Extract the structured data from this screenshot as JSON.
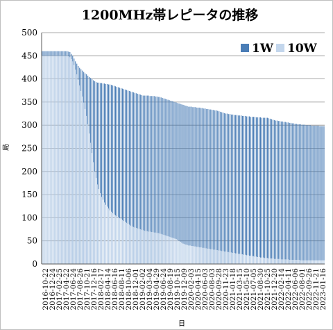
{
  "chart_data": {
    "type": "bar",
    "title": "1200MHz帯レピータの推移",
    "xlabel": "日",
    "ylabel": "局",
    "ylim": [
      0,
      500
    ],
    "yticks": [
      0,
      50,
      100,
      150,
      200,
      250,
      300,
      350,
      400,
      450,
      500
    ],
    "grid": true,
    "legend_position": "top-right",
    "stacked": false,
    "overlap": true,
    "colors": {
      "1W": "#4a7db6",
      "10W": "#c3d6ec"
    },
    "x_tick_labels": [
      "2016-10-22",
      "2016-12-24",
      "2017-02-25",
      "2017-04-22",
      "2017-06-24",
      "2017-08-26",
      "2017-10-21",
      "2017-12-16",
      "2018-02-17",
      "2018-04-14",
      "2018-06-16",
      "2018-08-11",
      "2018-10-06",
      "2018-12-01",
      "2019-02-02",
      "2019-03-04",
      "2019-04-29",
      "2019-06-24",
      "2019-08-19",
      "2019-10-15",
      "2019-12-09",
      "2020-02-03",
      "2020-04-15",
      "2020-06-03",
      "2020-08-03",
      "2020-09-28",
      "2020-11-23",
      "2021-01-18",
      "2021-03-15",
      "2021-05-10",
      "2021-07-05",
      "2021-08-30",
      "2021-10-25",
      "2021-12-20",
      "2022-02-14",
      "2022-04-11",
      "2022-06-06",
      "2022-08-01",
      "2022-09-26",
      "2022-11-21",
      "2023-01-16"
    ],
    "series": [
      {
        "name": "1W",
        "values": [
          460,
          460,
          460,
          460,
          460,
          460,
          460,
          460,
          460,
          460,
          460,
          460,
          460,
          460,
          460,
          460,
          460,
          460,
          460,
          459,
          458,
          454,
          450,
          444,
          438,
          433,
          428,
          424,
          421,
          418,
          415,
          412,
          410,
          407,
          404,
          402,
          400,
          397,
          395,
          393,
          392,
          392,
          391,
          391,
          390,
          390,
          389,
          389,
          388,
          388,
          387,
          386,
          385,
          384,
          383,
          382,
          381,
          380,
          379,
          378,
          377,
          376,
          375,
          374,
          373,
          372,
          371,
          370,
          369,
          368,
          367,
          366,
          365,
          364,
          364,
          364,
          364,
          364,
          363,
          363,
          363,
          363,
          362,
          362,
          361,
          361,
          360,
          359,
          358,
          357,
          356,
          355,
          354,
          353,
          352,
          351,
          350,
          349,
          348,
          347,
          346,
          345,
          344,
          343,
          342,
          341,
          340,
          340,
          340,
          339,
          339,
          339,
          338,
          338,
          338,
          337,
          337,
          336,
          336,
          335,
          335,
          334,
          334,
          333,
          333,
          332,
          332,
          331,
          330,
          329,
          328,
          327,
          326,
          325,
          325,
          324,
          324,
          323,
          323,
          322,
          322,
          322,
          321,
          321,
          321,
          320,
          320,
          320,
          319,
          319,
          319,
          318,
          318,
          318,
          318,
          317,
          317,
          317,
          317,
          316,
          316,
          316,
          316,
          316,
          315,
          314,
          313,
          312,
          311,
          310,
          310,
          309,
          309,
          308,
          308,
          307,
          307,
          306,
          306,
          305,
          305,
          304,
          304,
          303,
          303,
          302,
          302,
          302,
          301,
          301,
          301,
          300,
          300,
          300,
          300,
          299,
          299,
          299,
          299,
          299,
          299,
          298,
          298,
          298,
          298
        ]
      },
      {
        "name": "10W",
        "values": [
          450,
          450,
          450,
          450,
          450,
          450,
          450,
          450,
          450,
          450,
          450,
          450,
          450,
          450,
          450,
          450,
          450,
          450,
          450,
          449,
          447,
          443,
          438,
          430,
          420,
          410,
          398,
          386,
          374,
          362,
          349,
          335,
          320,
          302,
          282,
          262,
          240,
          220,
          200,
          186,
          172,
          162,
          153,
          145,
          139,
          133,
          128,
          124,
          120,
          116,
          113,
          110,
          107,
          105,
          103,
          101,
          99,
          97,
          95,
          93,
          91,
          89,
          87,
          85,
          83,
          81,
          80,
          79,
          78,
          77,
          76,
          75,
          74,
          73,
          72,
          71,
          71,
          70,
          70,
          69,
          69,
          68,
          68,
          67,
          67,
          66,
          65,
          64,
          63,
          62,
          61,
          60,
          59,
          58,
          57,
          56,
          55,
          54,
          52,
          50,
          48,
          46,
          44,
          43,
          42,
          41,
          40,
          40,
          39,
          39,
          38,
          38,
          37,
          37,
          36,
          36,
          35,
          35,
          34,
          34,
          33,
          33,
          32,
          32,
          31,
          31,
          30,
          30,
          29,
          29,
          28,
          28,
          27,
          27,
          26,
          26,
          25,
          25,
          24,
          24,
          23,
          23,
          22,
          22,
          21,
          21,
          20,
          20,
          19,
          19,
          18,
          18,
          17,
          17,
          16,
          16,
          15,
          15,
          14,
          14,
          14,
          13,
          13,
          13,
          12,
          12,
          12,
          12,
          11,
          11,
          11,
          11,
          11,
          10,
          10,
          10,
          10,
          10,
          10,
          9,
          9,
          9,
          9,
          9,
          9,
          9,
          9,
          8,
          8,
          8,
          8,
          8,
          8,
          8,
          8,
          8,
          8,
          8,
          8,
          8,
          8,
          8,
          8,
          8,
          8,
          8
        ]
      }
    ]
  }
}
